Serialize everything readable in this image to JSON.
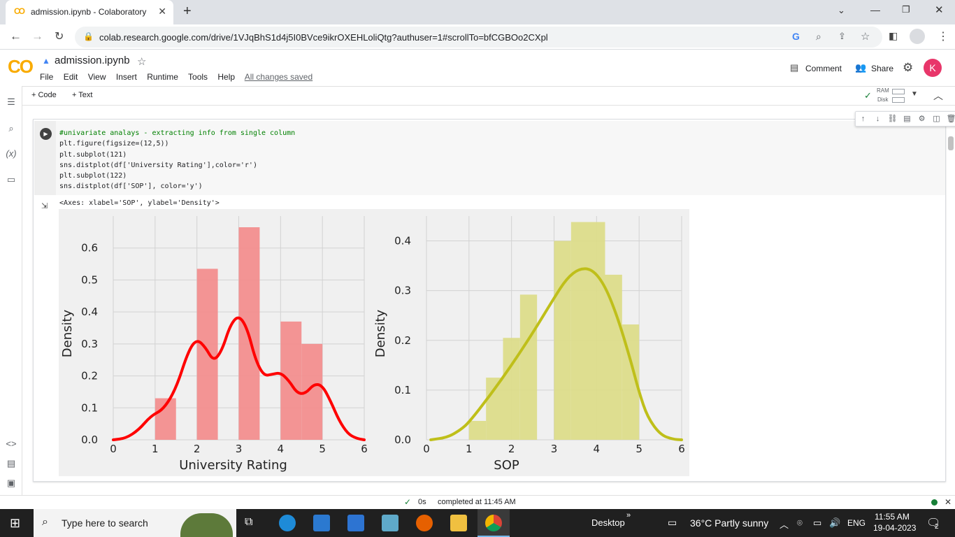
{
  "browser": {
    "tab_title": "admission.ipynb - Colaboratory",
    "new_tab": "+",
    "url": "colab.research.google.com/drive/1VJqBhS1d4j5I0BVce9ikrOXEHLoliQtg?authuser=1#scrollTo=bfCGBOo2CXpl",
    "window_controls": [
      "chevron-down",
      "minimize",
      "restore",
      "close"
    ]
  },
  "colab": {
    "logo": "CO",
    "filename": "admission.ipynb",
    "menus": [
      "File",
      "Edit",
      "View",
      "Insert",
      "Runtime",
      "Tools",
      "Help"
    ],
    "saved_status": "All changes saved",
    "comment_label": "Comment",
    "share_label": "Share",
    "avatar_letter": "K",
    "add_code": "+ Code",
    "add_text": "+ Text",
    "ram_label": "RAM",
    "disk_label": "Disk"
  },
  "cell": {
    "code_lines": [
      "#univariate analays - extracting info from single column",
      "plt.figure(figsize=(12,5))",
      "plt.subplot(121)",
      "sns.distplot(df['University Rating'],color='r')",
      "plt.subplot(122)",
      "sns.distplot(df['SOP'], color='y')"
    ],
    "output_text": "<Axes: xlabel='SOP', ylabel='Density'>"
  },
  "chart_data": [
    {
      "type": "bar",
      "xlabel": "University Rating",
      "ylabel": "Density",
      "xlim": [
        0,
        6
      ],
      "ylim": [
        0,
        0.7
      ],
      "xticks": [
        0,
        1,
        2,
        3,
        4,
        5,
        6
      ],
      "yticks": [
        0.0,
        0.1,
        0.2,
        0.3,
        0.4,
        0.5,
        0.6
      ],
      "color": "#ff0000",
      "bar_color": "#f28e8e",
      "bars": [
        {
          "x0": 1.0,
          "x1": 1.5,
          "value": 0.13
        },
        {
          "x0": 2.0,
          "x1": 2.5,
          "value": 0.535
        },
        {
          "x0": 3.0,
          "x1": 3.5,
          "value": 0.665
        },
        {
          "x0": 4.0,
          "x1": 4.5,
          "value": 0.37
        },
        {
          "x0": 4.5,
          "x1": 5.0,
          "value": 0.3
        }
      ],
      "kde": [
        [
          0,
          0.0
        ],
        [
          0.3,
          0.005
        ],
        [
          0.6,
          0.03
        ],
        [
          0.9,
          0.075
        ],
        [
          1.2,
          0.095
        ],
        [
          1.5,
          0.16
        ],
        [
          1.8,
          0.28
        ],
        [
          2.0,
          0.315
        ],
        [
          2.2,
          0.29
        ],
        [
          2.4,
          0.245
        ],
        [
          2.6,
          0.28
        ],
        [
          2.8,
          0.36
        ],
        [
          3.0,
          0.39
        ],
        [
          3.2,
          0.35
        ],
        [
          3.4,
          0.25
        ],
        [
          3.6,
          0.2
        ],
        [
          3.8,
          0.205
        ],
        [
          4.0,
          0.21
        ],
        [
          4.2,
          0.185
        ],
        [
          4.4,
          0.145
        ],
        [
          4.6,
          0.145
        ],
        [
          4.8,
          0.175
        ],
        [
          5.0,
          0.17
        ],
        [
          5.2,
          0.12
        ],
        [
          5.4,
          0.06
        ],
        [
          5.6,
          0.02
        ],
        [
          5.8,
          0.005
        ],
        [
          6.0,
          0.0
        ]
      ],
      "grid": true
    },
    {
      "type": "bar",
      "xlabel": "SOP",
      "ylabel": "Density",
      "xlim": [
        0,
        6
      ],
      "ylim": [
        0,
        0.45
      ],
      "xticks": [
        0,
        1,
        2,
        3,
        4,
        5,
        6
      ],
      "yticks": [
        0.0,
        0.1,
        0.2,
        0.3,
        0.4
      ],
      "color": "#bfbf1a",
      "bar_color": "#dcdc8a",
      "bars": [
        {
          "x0": 1.0,
          "x1": 1.4,
          "value": 0.038
        },
        {
          "x0": 1.4,
          "x1": 1.8,
          "value": 0.125
        },
        {
          "x0": 1.8,
          "x1": 2.2,
          "value": 0.205
        },
        {
          "x0": 2.2,
          "x1": 2.6,
          "value": 0.292
        },
        {
          "x0": 3.0,
          "x1": 3.4,
          "value": 0.4
        },
        {
          "x0": 3.4,
          "x1": 4.2,
          "value": 0.438
        },
        {
          "x0": 4.2,
          "x1": 4.6,
          "value": 0.332
        },
        {
          "x0": 4.6,
          "x1": 5.0,
          "value": 0.232
        }
      ],
      "kde": [
        [
          0.1,
          0.0
        ],
        [
          0.5,
          0.005
        ],
        [
          0.8,
          0.02
        ],
        [
          1.0,
          0.035
        ],
        [
          1.5,
          0.09
        ],
        [
          2.0,
          0.15
        ],
        [
          2.5,
          0.215
        ],
        [
          3.0,
          0.285
        ],
        [
          3.3,
          0.325
        ],
        [
          3.6,
          0.345
        ],
        [
          3.9,
          0.343
        ],
        [
          4.2,
          0.31
        ],
        [
          4.5,
          0.245
        ],
        [
          4.8,
          0.16
        ],
        [
          5.0,
          0.095
        ],
        [
          5.2,
          0.045
        ],
        [
          5.5,
          0.01
        ],
        [
          5.8,
          0.001
        ],
        [
          6.0,
          0.0
        ]
      ],
      "grid": true
    }
  ],
  "status": {
    "duration": "0s",
    "completed": "completed at 11:45 AM"
  },
  "taskbar": {
    "search_placeholder": "Type here to search",
    "desktop_label": "Desktop",
    "weather": "36°C  Partly sunny",
    "language": "ENG",
    "time": "11:55 AM",
    "date": "19-04-2023",
    "notification_count": "2"
  }
}
